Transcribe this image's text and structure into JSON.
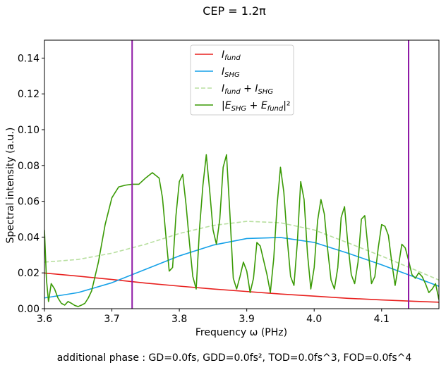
{
  "chart_data": {
    "type": "line",
    "title": "CEP = 1.2π",
    "footer": "additional phase : GD=0.0fs, GDD=0.0fs², TOD=0.0fs^3, FOD=0.0fs^4",
    "xlabel": "Frequency ω (PHz)",
    "ylabel": "Spectral intensity (a.u.)",
    "xlim": [
      3.6,
      4.185
    ],
    "ylim": [
      0,
      0.15
    ],
    "xticks": [
      "3.6",
      "3.7",
      "3.8",
      "3.9",
      "4.0",
      "4.1"
    ],
    "yticks": [
      "0.00",
      "0.02",
      "0.04",
      "0.06",
      "0.08",
      "0.10",
      "0.12",
      "0.14"
    ],
    "grid": false,
    "legend_position": "upper-center",
    "vertical_lines": [
      3.73,
      4.14
    ],
    "vertical_line_color": "#8e1aa6",
    "series": [
      {
        "name": "I_fund",
        "color": "#e8211f",
        "style": "solid",
        "x": [
          3.6,
          3.65,
          3.7,
          3.75,
          3.8,
          3.85,
          3.9,
          3.95,
          4.0,
          4.05,
          4.1,
          4.15,
          4.185
        ],
        "y": [
          0.0199,
          0.0182,
          0.0163,
          0.0143,
          0.0126,
          0.011,
          0.0096,
          0.0082,
          0.007,
          0.0058,
          0.0049,
          0.0041,
          0.0036
        ]
      },
      {
        "name": "I_SHG",
        "color": "#15a1e8",
        "style": "solid",
        "x": [
          3.6,
          3.65,
          3.7,
          3.75,
          3.8,
          3.85,
          3.9,
          3.95,
          4.0,
          4.05,
          4.1,
          4.15,
          4.185
        ],
        "y": [
          0.006,
          0.009,
          0.0145,
          0.022,
          0.0295,
          0.0355,
          0.0392,
          0.0398,
          0.037,
          0.031,
          0.0245,
          0.0175,
          0.0125
        ]
      },
      {
        "name": "I_fund + I_SHG",
        "color": "#b8dfa0",
        "style": "dashed",
        "x": [
          3.6,
          3.65,
          3.7,
          3.75,
          3.8,
          3.85,
          3.9,
          3.95,
          4.0,
          4.05,
          4.1,
          4.15,
          4.185
        ],
        "y": [
          0.026,
          0.0275,
          0.031,
          0.036,
          0.042,
          0.0465,
          0.0488,
          0.048,
          0.044,
          0.0368,
          0.0294,
          0.0216,
          0.016
        ]
      },
      {
        "name": "|E_SHG + E_fund|²",
        "color": "#3a9a05",
        "style": "solid",
        "x": [
          3.6,
          3.603,
          3.606,
          3.61,
          3.615,
          3.62,
          3.625,
          3.63,
          3.635,
          3.64,
          3.645,
          3.65,
          3.655,
          3.66,
          3.665,
          3.67,
          3.68,
          3.69,
          3.7,
          3.71,
          3.72,
          3.73,
          3.74,
          3.75,
          3.76,
          3.77,
          3.775,
          3.78,
          3.785,
          3.79,
          3.795,
          3.8,
          3.805,
          3.81,
          3.815,
          3.82,
          3.825,
          3.83,
          3.835,
          3.84,
          3.845,
          3.85,
          3.855,
          3.86,
          3.865,
          3.87,
          3.875,
          3.88,
          3.885,
          3.89,
          3.895,
          3.9,
          3.905,
          3.91,
          3.915,
          3.92,
          3.925,
          3.93,
          3.935,
          3.94,
          3.945,
          3.95,
          3.955,
          3.96,
          3.965,
          3.97,
          3.975,
          3.98,
          3.985,
          3.99,
          3.995,
          4.0,
          4.005,
          4.01,
          4.015,
          4.02,
          4.025,
          4.03,
          4.035,
          4.04,
          4.045,
          4.05,
          4.055,
          4.06,
          4.065,
          4.07,
          4.075,
          4.08,
          4.085,
          4.09,
          4.095,
          4.1,
          4.105,
          4.11,
          4.115,
          4.12,
          4.125,
          4.13,
          4.135,
          4.14,
          4.145,
          4.15,
          4.155,
          4.16,
          4.165,
          4.17,
          4.175,
          4.18,
          4.185
        ],
        "y": [
          0.044,
          0.016,
          0.004,
          0.014,
          0.011,
          0.006,
          0.003,
          0.002,
          0.004,
          0.003,
          0.0018,
          0.0012,
          0.002,
          0.003,
          0.006,
          0.01,
          0.026,
          0.047,
          0.062,
          0.068,
          0.069,
          0.0695,
          0.0695,
          0.073,
          0.076,
          0.073,
          0.062,
          0.041,
          0.021,
          0.023,
          0.052,
          0.071,
          0.075,
          0.058,
          0.037,
          0.018,
          0.011,
          0.045,
          0.069,
          0.086,
          0.066,
          0.044,
          0.036,
          0.05,
          0.079,
          0.086,
          0.053,
          0.017,
          0.011,
          0.018,
          0.026,
          0.021,
          0.009,
          0.017,
          0.037,
          0.035,
          0.027,
          0.019,
          0.009,
          0.028,
          0.058,
          0.079,
          0.065,
          0.039,
          0.018,
          0.013,
          0.037,
          0.071,
          0.061,
          0.031,
          0.011,
          0.023,
          0.049,
          0.061,
          0.053,
          0.033,
          0.016,
          0.011,
          0.023,
          0.051,
          0.057,
          0.036,
          0.019,
          0.014,
          0.026,
          0.05,
          0.052,
          0.033,
          0.014,
          0.018,
          0.034,
          0.047,
          0.046,
          0.041,
          0.026,
          0.013,
          0.024,
          0.036,
          0.034,
          0.027,
          0.019,
          0.017,
          0.02,
          0.018,
          0.014,
          0.009,
          0.011,
          0.014,
          0.005
        ]
      }
    ],
    "legend_entries": [
      {
        "label_main": "I",
        "label_sub": "fund",
        "ref": 0
      },
      {
        "label_main": "I",
        "label_sub": "SHG",
        "ref": 1
      },
      {
        "label_main": "I",
        "label_sub": "fund",
        "label_mid": " + I",
        "label_sub2": "SHG",
        "ref": 2
      },
      {
        "label_main": "|E",
        "label_sub": "SHG",
        "label_mid": " + E",
        "label_sub2": "fund",
        "label_tail": "|²",
        "ref": 3
      }
    ]
  }
}
